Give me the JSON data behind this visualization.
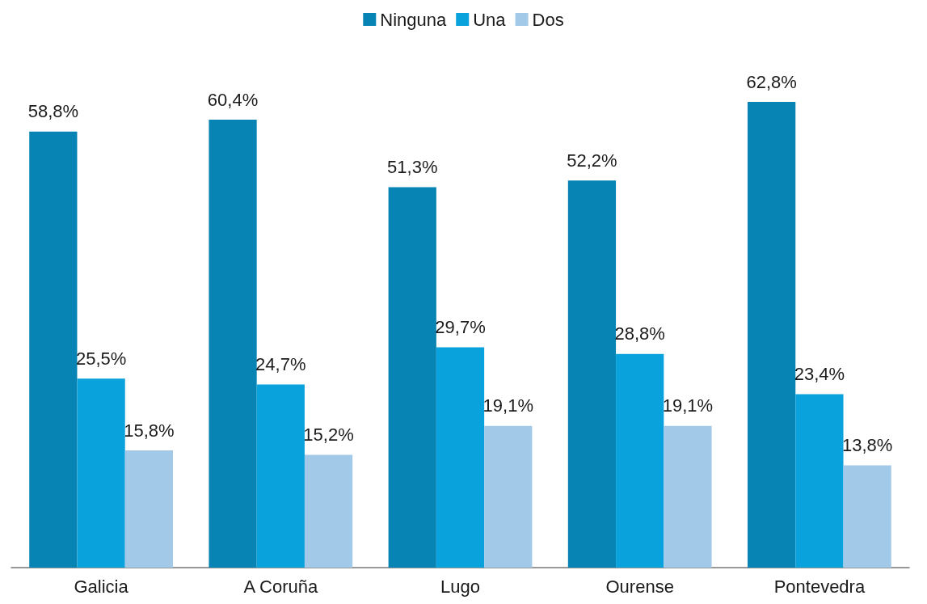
{
  "chart_data": {
    "type": "bar",
    "categories": [
      "Galicia",
      "A Coruña",
      "Lugo",
      "Ourense",
      "Pontevedra"
    ],
    "series": [
      {
        "name": "Ninguna",
        "color": "#0784b4",
        "values": [
          58.8,
          60.4,
          51.3,
          52.2,
          62.8
        ],
        "value_labels": [
          "58,8%",
          "60,4%",
          "51,3%",
          "52,2%",
          "62,8%"
        ]
      },
      {
        "name": "Una",
        "color": "#0aa2dc",
        "values": [
          25.5,
          24.7,
          29.7,
          28.8,
          23.4
        ],
        "value_labels": [
          "25,5%",
          "24,7%",
          "29,7%",
          "28,8%",
          "23,4%"
        ]
      },
      {
        "name": "Dos",
        "color": "#a3c9e8",
        "values": [
          15.8,
          15.2,
          19.1,
          19.1,
          13.8
        ],
        "value_labels": [
          "15,8%",
          "15,2%",
          "19,1%",
          "19,1%",
          "13,8%"
        ]
      }
    ],
    "legend": "top",
    "grid": false,
    "tick_labels": "x"
  }
}
